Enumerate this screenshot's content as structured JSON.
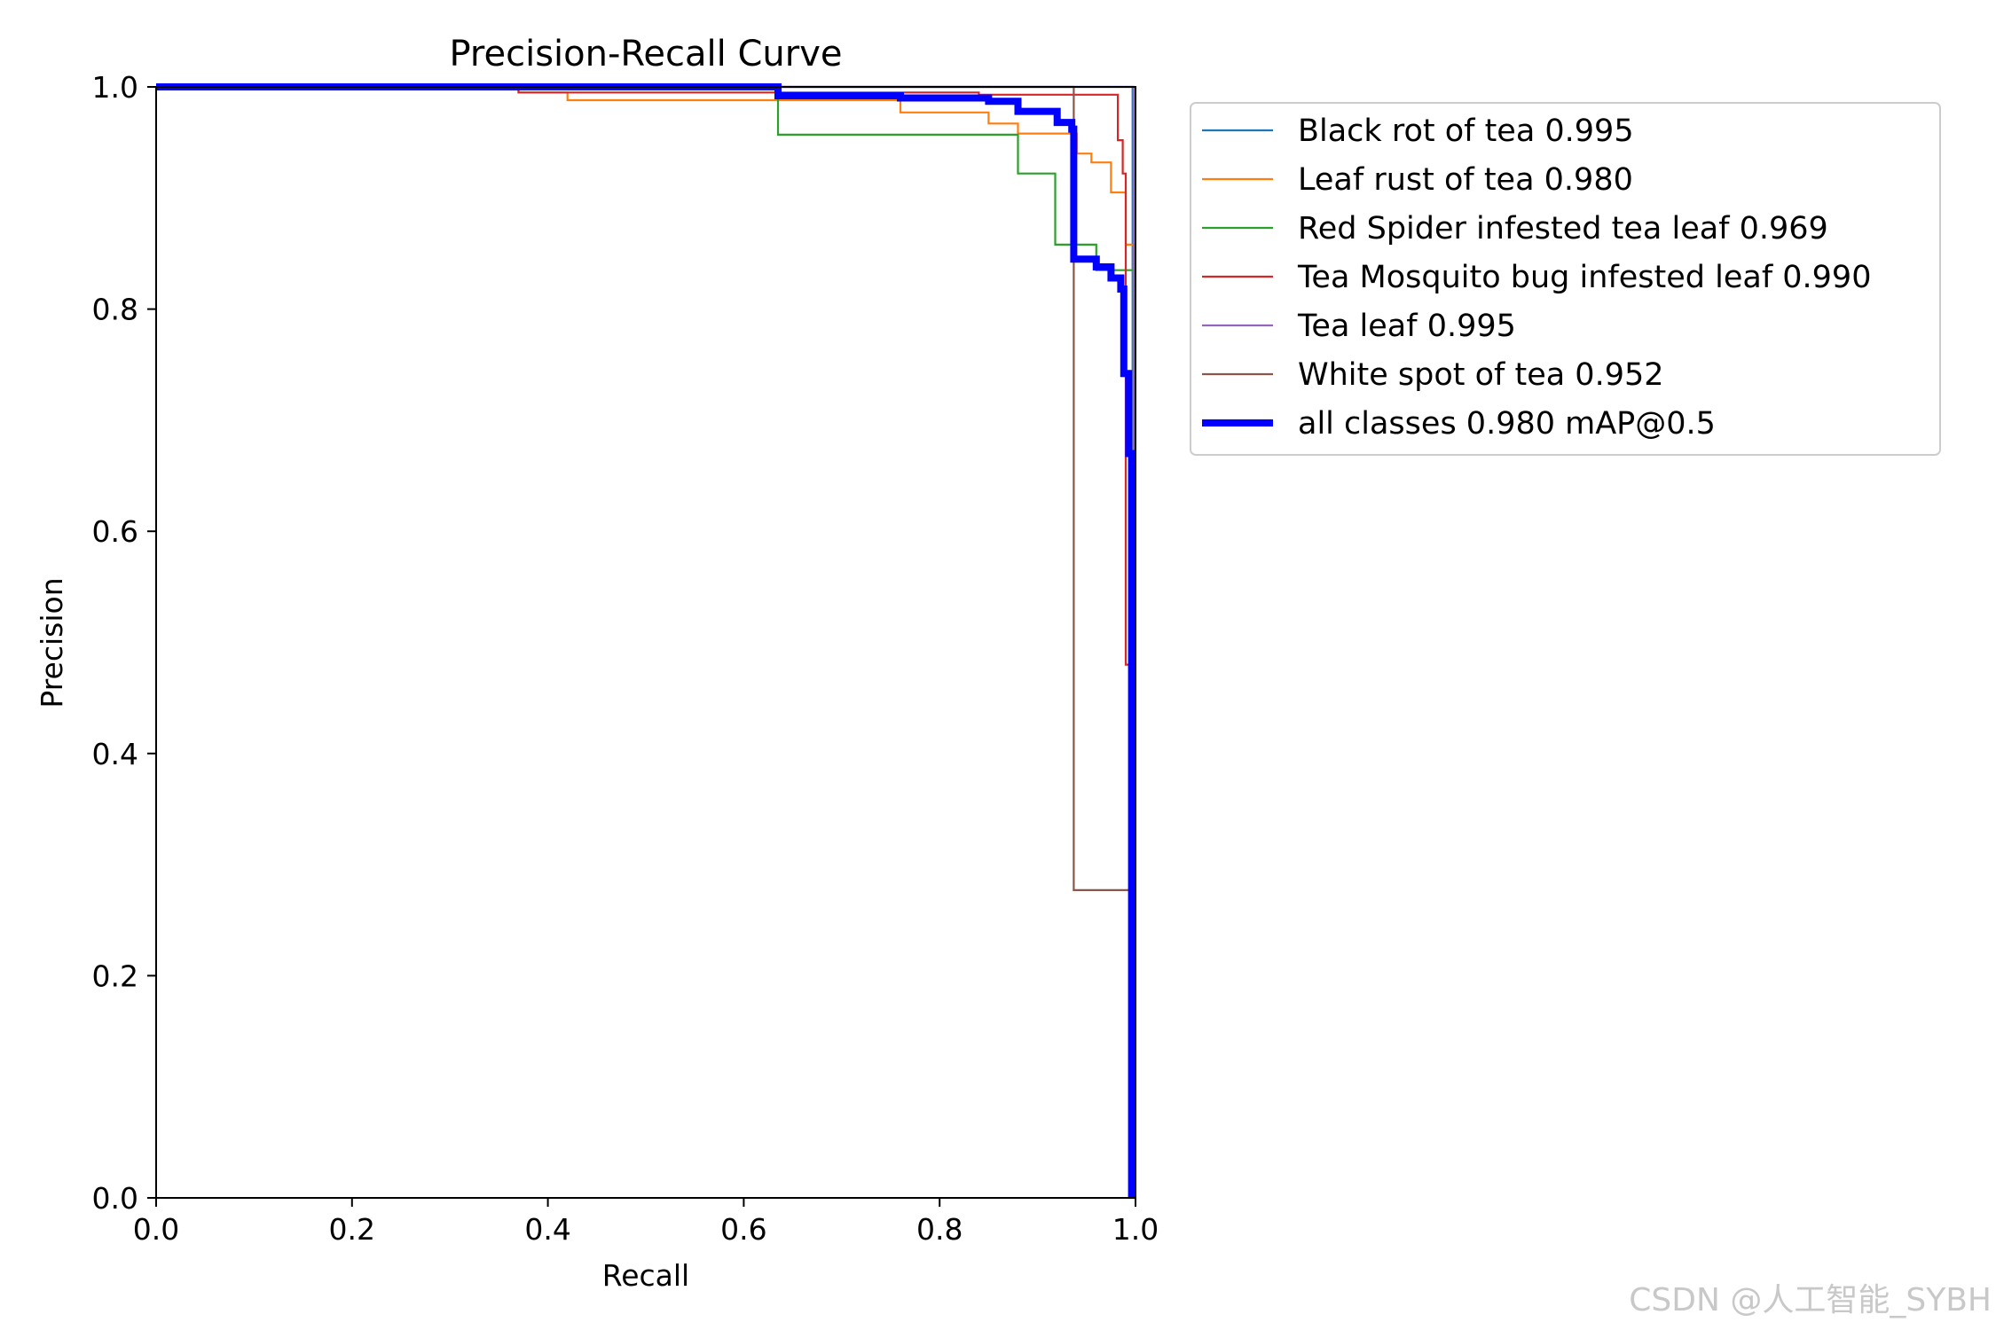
{
  "chart_data": {
    "type": "line",
    "title": "Precision-Recall Curve",
    "xlabel": "Recall",
    "ylabel": "Precision",
    "xlim": [
      0,
      1
    ],
    "ylim": [
      0,
      1
    ],
    "xticks": [
      "0.0",
      "0.2",
      "0.4",
      "0.6",
      "0.8",
      "1.0"
    ],
    "yticks": [
      "0.0",
      "0.2",
      "0.4",
      "0.6",
      "0.8",
      "1.0"
    ],
    "legend_position": "outside-right",
    "grid": false,
    "series": [
      {
        "name": "Black rot of tea 0.995",
        "color": "#1f77b4",
        "points": [
          [
            0,
            1
          ],
          [
            0.997,
            1
          ],
          [
            0.997,
            0.75
          ],
          [
            0.999,
            0.0
          ]
        ]
      },
      {
        "name": "Leaf rust of tea 0.980",
        "color": "#ff7f0e",
        "points": [
          [
            0,
            1
          ],
          [
            0.37,
            1
          ],
          [
            0.37,
            0.995
          ],
          [
            0.42,
            0.995
          ],
          [
            0.42,
            0.988
          ],
          [
            0.76,
            0.988
          ],
          [
            0.76,
            0.977
          ],
          [
            0.85,
            0.977
          ],
          [
            0.85,
            0.967
          ],
          [
            0.88,
            0.967
          ],
          [
            0.88,
            0.958
          ],
          [
            0.94,
            0.958
          ],
          [
            0.94,
            0.94
          ],
          [
            0.955,
            0.94
          ],
          [
            0.955,
            0.932
          ],
          [
            0.975,
            0.932
          ],
          [
            0.975,
            0.905
          ],
          [
            0.99,
            0.905
          ],
          [
            0.99,
            0.858
          ],
          [
            0.998,
            0.858
          ],
          [
            0.998,
            0.02
          ]
        ]
      },
      {
        "name": "Red Spider infested tea leaf 0.969",
        "color": "#2ca02c",
        "points": [
          [
            0,
            1
          ],
          [
            0.635,
            1
          ],
          [
            0.635,
            0.957
          ],
          [
            0.88,
            0.957
          ],
          [
            0.88,
            0.922
          ],
          [
            0.918,
            0.922
          ],
          [
            0.918,
            0.858
          ],
          [
            0.96,
            0.858
          ],
          [
            0.96,
            0.835
          ],
          [
            0.998,
            0.835
          ],
          [
            0.998,
            0.02
          ]
        ]
      },
      {
        "name": "Tea Mosquito bug infested leaf 0.990",
        "color": "#d62728",
        "points": [
          [
            0,
            1
          ],
          [
            0.37,
            1
          ],
          [
            0.37,
            0.995
          ],
          [
            0.84,
            0.995
          ],
          [
            0.84,
            0.993
          ],
          [
            0.982,
            0.993
          ],
          [
            0.982,
            0.952
          ],
          [
            0.987,
            0.952
          ],
          [
            0.987,
            0.922
          ],
          [
            0.99,
            0.922
          ],
          [
            0.99,
            0.48
          ],
          [
            0.995,
            0.48
          ],
          [
            0.995,
            0.02
          ]
        ]
      },
      {
        "name": "Tea leaf 0.995",
        "color": "#9467bd",
        "points": [
          [
            0,
            1
          ],
          [
            0.998,
            1
          ],
          [
            0.998,
            0.05
          ]
        ]
      },
      {
        "name": "White spot of tea 0.952",
        "color": "#8c564b",
        "points": [
          [
            0,
            1
          ],
          [
            0.937,
            1
          ],
          [
            0.937,
            0.277
          ],
          [
            0.995,
            0.277
          ],
          [
            0.995,
            0.02
          ]
        ]
      },
      {
        "name": "all classes 0.980 mAP@0.5",
        "color": "#0000ff",
        "bold": true,
        "points": [
          [
            0,
            1
          ],
          [
            0.635,
            1
          ],
          [
            0.635,
            0.992
          ],
          [
            0.76,
            0.992
          ],
          [
            0.76,
            0.99
          ],
          [
            0.85,
            0.99
          ],
          [
            0.85,
            0.987
          ],
          [
            0.88,
            0.987
          ],
          [
            0.88,
            0.978
          ],
          [
            0.92,
            0.978
          ],
          [
            0.92,
            0.968
          ],
          [
            0.935,
            0.968
          ],
          [
            0.935,
            0.962
          ],
          [
            0.937,
            0.962
          ],
          [
            0.937,
            0.845
          ],
          [
            0.96,
            0.845
          ],
          [
            0.96,
            0.838
          ],
          [
            0.975,
            0.838
          ],
          [
            0.975,
            0.828
          ],
          [
            0.985,
            0.828
          ],
          [
            0.985,
            0.818
          ],
          [
            0.988,
            0.818
          ],
          [
            0.988,
            0.742
          ],
          [
            0.993,
            0.742
          ],
          [
            0.993,
            0.67
          ],
          [
            0.996,
            0.67
          ],
          [
            0.996,
            0.0
          ]
        ]
      }
    ]
  },
  "watermark": "CSDN @人工智能_SYBH"
}
